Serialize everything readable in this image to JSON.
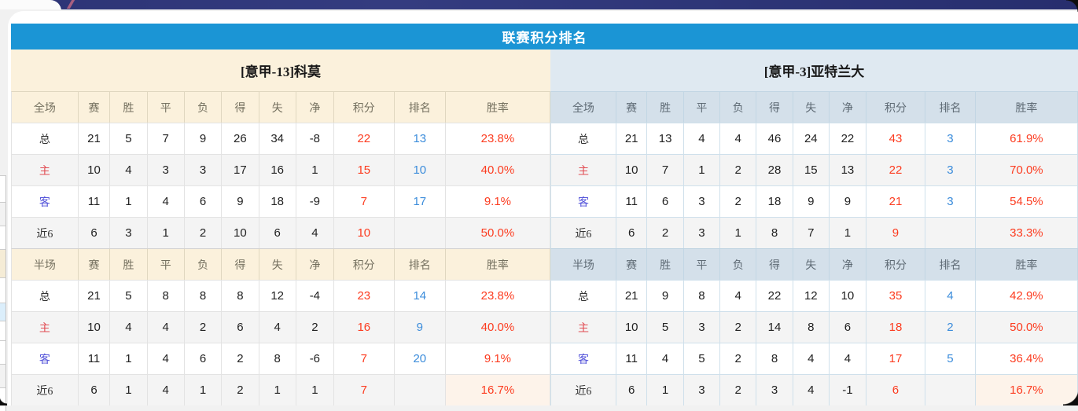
{
  "page": {
    "title": "联赛积分排名",
    "colors": {
      "accent_blue": "#1b95d5",
      "banner_navy": "#2d3476",
      "value_red": "#fc3c20",
      "rank_blue": "#3b8cdb",
      "home_red": "#e14b52",
      "away_blue": "#5353d9",
      "left_header_bg": "#fbf1dc",
      "right_header_bg": "#dfe9f1"
    }
  },
  "tables": [
    {
      "team_title": "[意甲-13]科莫",
      "theme": "cream",
      "sections": [
        {
          "scope": "全场",
          "headers": [
            "赛",
            "胜",
            "平",
            "负",
            "得",
            "失",
            "净",
            "积分",
            "排名",
            "胜率"
          ],
          "rows": [
            {
              "label": "总",
              "kind": "total",
              "cells": [
                "21",
                "5",
                "7",
                "9",
                "26",
                "34",
                "-8",
                "22",
                "13",
                "23.8%"
              ]
            },
            {
              "label": "主",
              "kind": "home",
              "cells": [
                "10",
                "4",
                "3",
                "3",
                "17",
                "16",
                "1",
                "15",
                "10",
                "40.0%"
              ]
            },
            {
              "label": "客",
              "kind": "away",
              "cells": [
                "11",
                "1",
                "4",
                "6",
                "9",
                "18",
                "-9",
                "7",
                "17",
                "9.1%"
              ]
            },
            {
              "label": "近6",
              "kind": "recent",
              "cells": [
                "6",
                "3",
                "1",
                "2",
                "10",
                "6",
                "4",
                "10",
                "",
                "50.0%"
              ]
            }
          ]
        },
        {
          "scope": "半场",
          "headers": [
            "赛",
            "胜",
            "平",
            "负",
            "得",
            "失",
            "净",
            "积分",
            "排名",
            "胜率"
          ],
          "rows": [
            {
              "label": "总",
              "kind": "total",
              "cells": [
                "21",
                "5",
                "8",
                "8",
                "8",
                "12",
                "-4",
                "23",
                "14",
                "23.8%"
              ]
            },
            {
              "label": "主",
              "kind": "home",
              "cells": [
                "10",
                "4",
                "4",
                "2",
                "6",
                "4",
                "2",
                "16",
                "9",
                "40.0%"
              ]
            },
            {
              "label": "客",
              "kind": "away",
              "cells": [
                "11",
                "1",
                "4",
                "6",
                "2",
                "8",
                "-6",
                "7",
                "20",
                "9.1%"
              ]
            },
            {
              "label": "近6",
              "kind": "recent",
              "cells": [
                "6",
                "1",
                "4",
                "1",
                "2",
                "1",
                "1",
                "7",
                "",
                "16.7%"
              ]
            }
          ]
        }
      ]
    },
    {
      "team_title": "[意甲-3]亚特兰大",
      "theme": "blue",
      "sections": [
        {
          "scope": "全场",
          "headers": [
            "赛",
            "胜",
            "平",
            "负",
            "得",
            "失",
            "净",
            "积分",
            "排名",
            "胜率"
          ],
          "rows": [
            {
              "label": "总",
              "kind": "total",
              "cells": [
                "21",
                "13",
                "4",
                "4",
                "46",
                "24",
                "22",
                "43",
                "3",
                "61.9%"
              ]
            },
            {
              "label": "主",
              "kind": "home",
              "cells": [
                "10",
                "7",
                "1",
                "2",
                "28",
                "15",
                "13",
                "22",
                "3",
                "70.0%"
              ]
            },
            {
              "label": "客",
              "kind": "away",
              "cells": [
                "11",
                "6",
                "3",
                "2",
                "18",
                "9",
                "9",
                "21",
                "3",
                "54.5%"
              ]
            },
            {
              "label": "近6",
              "kind": "recent",
              "cells": [
                "6",
                "2",
                "3",
                "1",
                "8",
                "7",
                "1",
                "9",
                "",
                "33.3%"
              ]
            }
          ]
        },
        {
          "scope": "半场",
          "headers": [
            "赛",
            "胜",
            "平",
            "负",
            "得",
            "失",
            "净",
            "积分",
            "排名",
            "胜率"
          ],
          "rows": [
            {
              "label": "总",
              "kind": "total",
              "cells": [
                "21",
                "9",
                "8",
                "4",
                "22",
                "12",
                "10",
                "35",
                "4",
                "42.9%"
              ]
            },
            {
              "label": "主",
              "kind": "home",
              "cells": [
                "10",
                "5",
                "3",
                "2",
                "14",
                "8",
                "6",
                "18",
                "2",
                "50.0%"
              ]
            },
            {
              "label": "客",
              "kind": "away",
              "cells": [
                "11",
                "4",
                "5",
                "2",
                "8",
                "4",
                "4",
                "17",
                "5",
                "36.4%"
              ]
            },
            {
              "label": "近6",
              "kind": "recent",
              "cells": [
                "6",
                "1",
                "3",
                "2",
                "3",
                "4",
                "-1",
                "6",
                "",
                "16.7%"
              ]
            }
          ]
        }
      ]
    }
  ]
}
